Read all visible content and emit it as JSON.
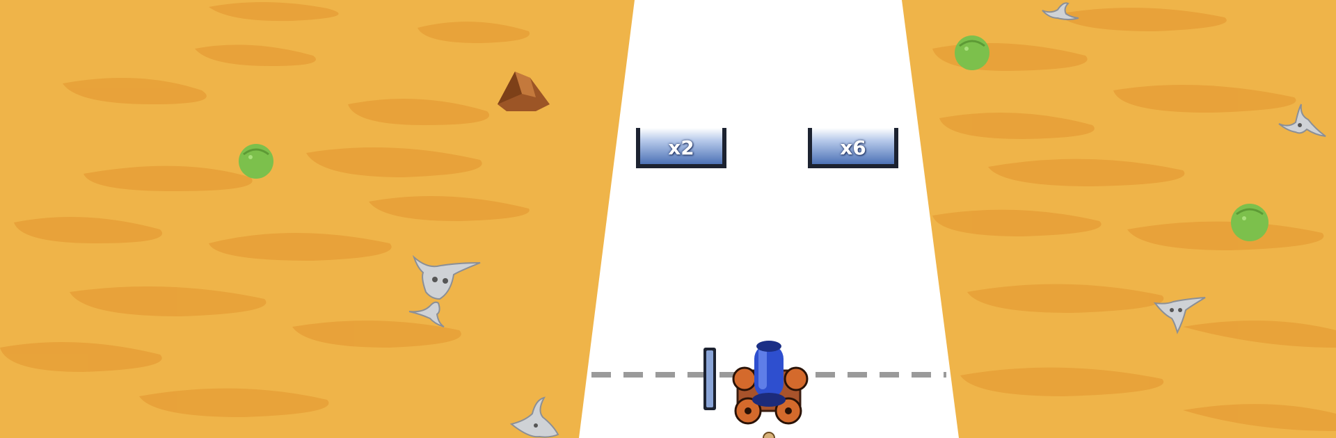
{
  "gates": [
    {
      "label": "x2"
    },
    {
      "label": "x6"
    }
  ],
  "colors": {
    "sand": "#efb449",
    "sand_shadow": "#e69d35",
    "track": "#ffffff",
    "gate_blue": "#4d72b6",
    "cannon_blue": "#2e4fcf",
    "cart_brown": "#a8532b",
    "cactus_green": "#7cc04c",
    "rock_brown": "#9c5526"
  },
  "icons": [
    "cannon-icon",
    "cactus-icon",
    "cow-skull-icon",
    "rock-icon"
  ]
}
